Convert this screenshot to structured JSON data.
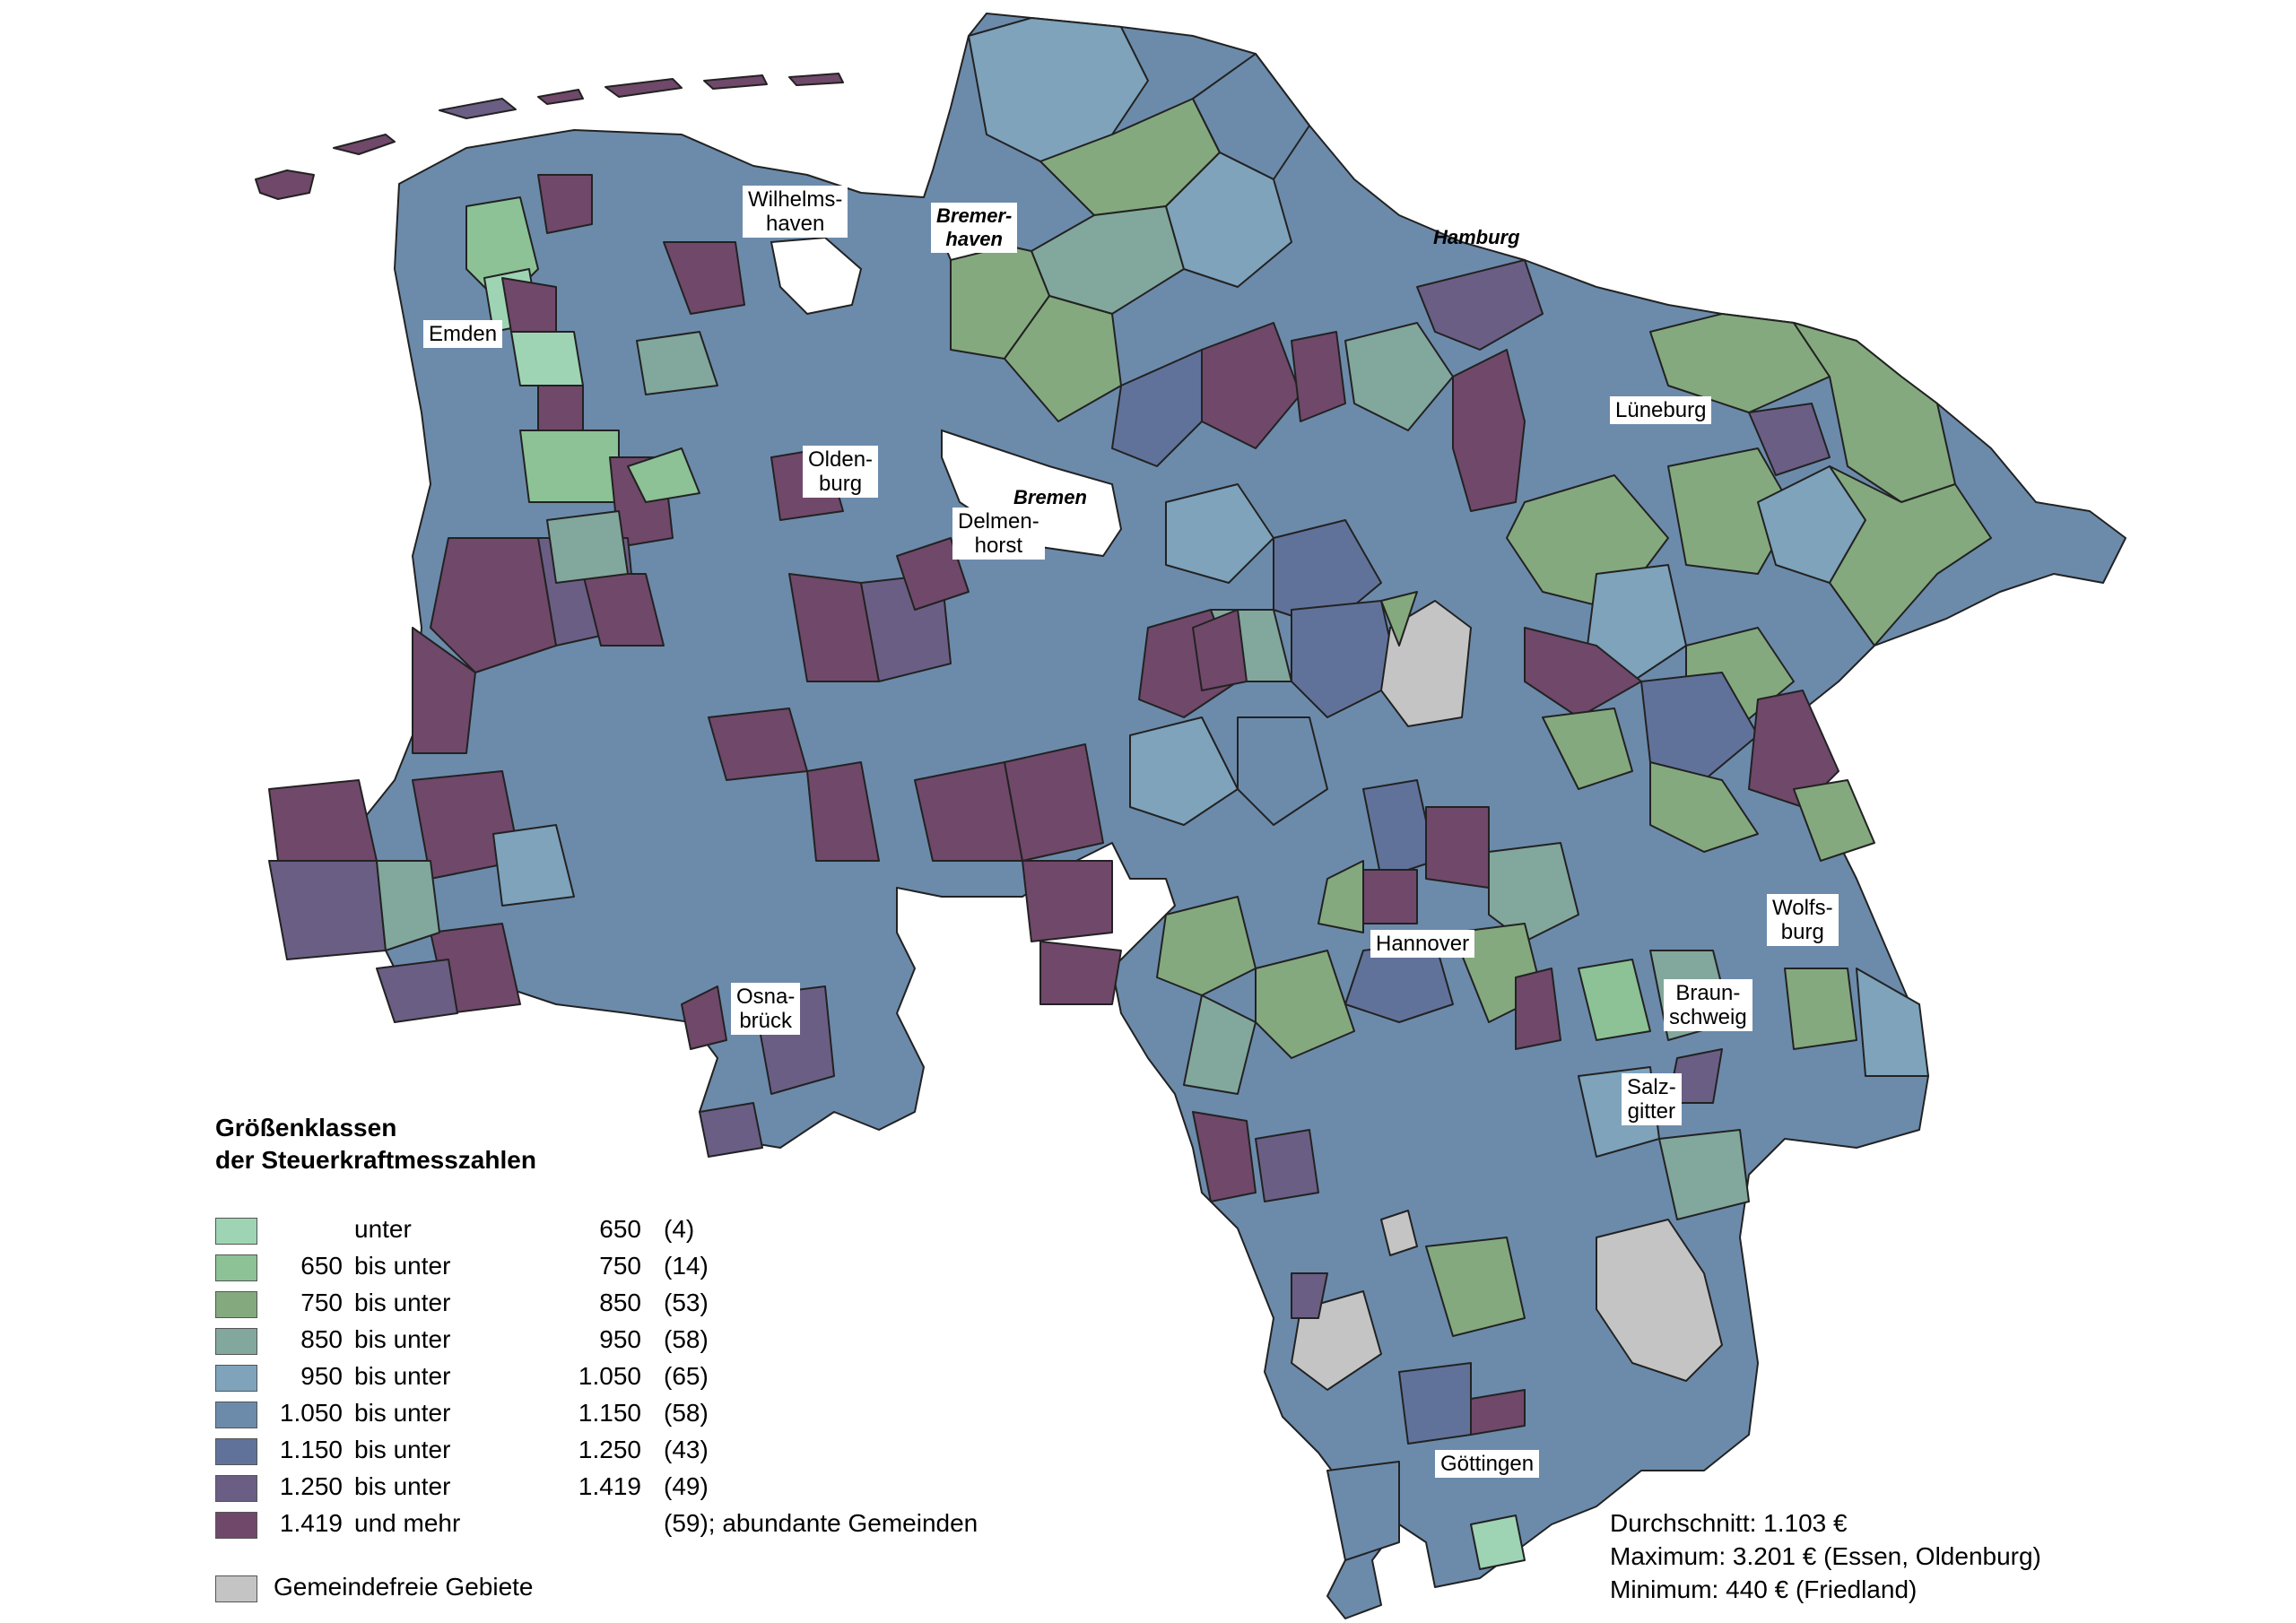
{
  "legend": {
    "title_line1": "Größenklassen",
    "title_line2": "der Steuerkraftmesszahlen",
    "classes": [
      {
        "from": "",
        "word": "unter",
        "to": "650",
        "count": "(4)",
        "color": "#9ed4b4"
      },
      {
        "from": "650",
        "word": "bis unter",
        "to": "750",
        "count": "(14)",
        "color": "#8cc295"
      },
      {
        "from": "750",
        "word": "bis unter",
        "to": "850",
        "count": "(53)",
        "color": "#84a97e"
      },
      {
        "from": "850",
        "word": "bis unter",
        "to": "950",
        "count": "(58)",
        "color": "#82a79c"
      },
      {
        "from": "950",
        "word": "bis unter",
        "to": "1.050",
        "count": "(65)",
        "color": "#7ea3bb"
      },
      {
        "from": "1.050",
        "word": "bis unter",
        "to": "1.150",
        "count": "(58)",
        "color": "#6c8bab"
      },
      {
        "from": "1.150",
        "word": "bis unter",
        "to": "1.250",
        "count": "(43)",
        "color": "#61729a"
      },
      {
        "from": "1.250",
        "word": "bis unter",
        "to": "1.419",
        "count": "(49)",
        "color": "#6b5e84"
      },
      {
        "from": "1.419",
        "word": "und mehr",
        "to": "",
        "count": "(59); abundante Gemeinden",
        "color": "#70486a"
      }
    ],
    "free_area": {
      "label": "Gemeindefreie Gebiete",
      "color": "#c4c4c4"
    }
  },
  "stats": {
    "average": "Durchschnitt: 1.103 €",
    "maximum": "Maximum: 3.201 € (Essen, Oldenburg)",
    "minimum": "Minimum: 440 € (Friedland)"
  },
  "cities": {
    "wilhelmshaven": "Wilhelms-\nhaven",
    "bremerhaven": "Bremer-\nhaven",
    "hamburg": "Hamburg",
    "emden": "Emden",
    "lueneburg": "Lüneburg",
    "oldenburg": "Olden-\nburg",
    "bremen": "Bremen",
    "delmenhorst": "Delmen-\nhorst",
    "wolfsburg": "Wolfs-\nburg",
    "hannover": "Hannover",
    "braunschweig": "Braun-\nschweig",
    "osnabrueck": "Osna-\nbrück",
    "salzgitter": "Salz-\ngitter",
    "goettingen": "Göttingen"
  }
}
